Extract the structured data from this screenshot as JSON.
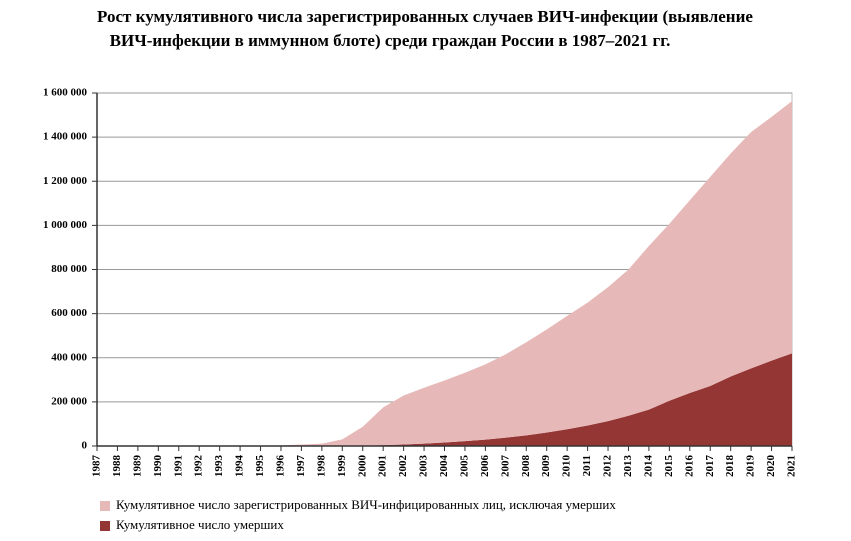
{
  "chart_data": {
    "type": "stacked_area",
    "title": [
      "Рост кумулятивного числа зарегистрированных случаев ВИЧ-инфекции (выявление",
      "ВИЧ-инфекции в иммунном блоте) среди  граждан России в 1987–2021 гг."
    ],
    "categories": [
      "1987",
      "1988",
      "1989",
      "1990",
      "1991",
      "1992",
      "1993",
      "1994",
      "1995",
      "1996",
      "1997",
      "1998",
      "1999",
      "2000",
      "2001",
      "2002",
      "2003",
      "2004",
      "2005",
      "2006",
      "2007",
      "2008",
      "2009",
      "2010",
      "2011",
      "2012",
      "2013",
      "2014",
      "2015",
      "2016",
      "2017",
      "2018",
      "2019",
      "2020",
      "2021"
    ],
    "series": [
      {
        "name": "Кумулятивное число умерших",
        "color": "#943634",
        "values": [
          0,
          0,
          0,
          0,
          0,
          0,
          0,
          0,
          100,
          200,
          300,
          500,
          1000,
          2000,
          4000,
          7000,
          11000,
          16000,
          22000,
          29000,
          38000,
          48000,
          61000,
          76000,
          93000,
          113000,
          137000,
          165000,
          205000,
          240000,
          272000,
          315000,
          352000,
          387000,
          420000
        ]
      },
      {
        "name": "Кумулятивное число зарегистрированных ВИЧ-инфицированных лиц, исключая умерших",
        "color": "#e6b9b8",
        "values": [
          100,
          200,
          400,
          500,
          600,
          700,
          800,
          900,
          1000,
          2500,
          6500,
          10500,
          29000,
          85000,
          171000,
          222000,
          253000,
          281000,
          310000,
          341000,
          378000,
          422000,
          467000,
          514000,
          557000,
          607000,
          663000,
          742000,
          802000,
          874000,
          948000,
          1011000,
          1071000,
          1105000,
          1143000
        ]
      }
    ],
    "ylim": [
      0,
      1600000
    ],
    "yticks": [
      0,
      {
        "value": 200000,
        "label": "200 000"
      },
      {
        "value": 400000,
        "label": "400 000"
      },
      {
        "value": 600000,
        "label": "600 000"
      },
      {
        "value": 800000,
        "label": "800 000"
      },
      {
        "value": 1000000,
        "label": "1 000 000"
      },
      {
        "value": 1200000,
        "label": "1 200 000"
      },
      {
        "value": 1400000,
        "label": "1 400 000"
      },
      {
        "value": 1600000,
        "label": "1 600 000"
      }
    ],
    "grid": true,
    "legend": "bottom"
  }
}
